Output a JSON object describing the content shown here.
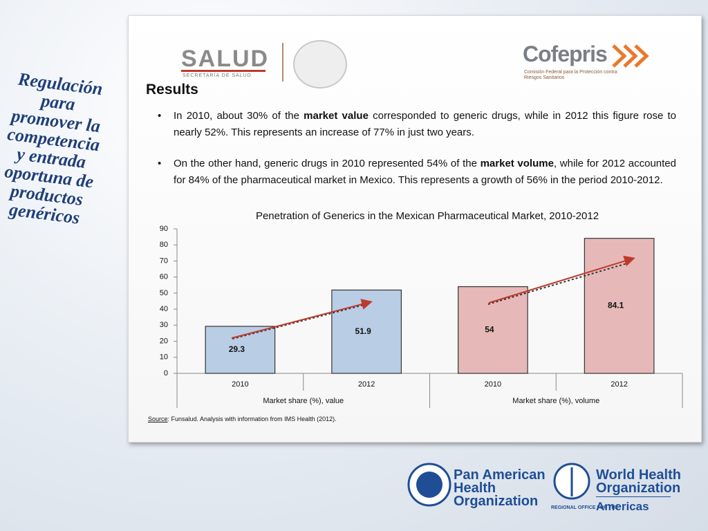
{
  "side_title": [
    "Regulación",
    "para",
    "promover la",
    "competencia",
    "y entrada",
    "oportuna de",
    "productos",
    "genéricos"
  ],
  "logos": {
    "salud": "SALUD",
    "salud_sub": "SECRETARÍA DE SALUD",
    "cofepris": "Cofepris",
    "cofepris_sub": "Comisión Federal para la Protección contra Riesgos Sanitarios"
  },
  "heading": "Results",
  "bullets": [
    [
      "In 2010, about 30% of the ",
      "market value",
      " corresponded to generic drugs, while in 2012 this figure rose to nearly 52%. This represents an increase of 77% in just two years."
    ],
    [
      "On the other hand, generic drugs in 2010 represented 54% of the ",
      "market volume",
      ", while for 2012 accounted for 84% of the pharmaceutical market in Mexico. This represents a growth of 56% in the period 2010-2012."
    ]
  ],
  "source": {
    "label": "Source",
    "text": ": Funsalud. Analysis with information from IMS Health (2012)."
  },
  "footer": {
    "paho": [
      "Pan American",
      "Health",
      "Organization"
    ],
    "who": [
      "World Health",
      "Organization"
    ],
    "who_sub": "REGIONAL OFFICE FOR THE",
    "who_region": "Americas"
  },
  "chart_data": {
    "type": "bar",
    "title": "Penetration of Generics in the Mexican Pharmaceutical Market, 2010-2012",
    "categories": [
      "2010",
      "2012",
      "2010",
      "2012"
    ],
    "groups": [
      "Market share (%), value",
      "Market share (%), volume"
    ],
    "values": [
      29.3,
      51.9,
      54,
      84.1
    ],
    "colors": [
      "#b9cde5",
      "#b9cde5",
      "#e6b9b8",
      "#e6b9b8"
    ],
    "ylim": [
      0,
      90
    ],
    "yticks": [
      0,
      10,
      20,
      30,
      40,
      50,
      60,
      70,
      80,
      90
    ],
    "grid": false
  }
}
